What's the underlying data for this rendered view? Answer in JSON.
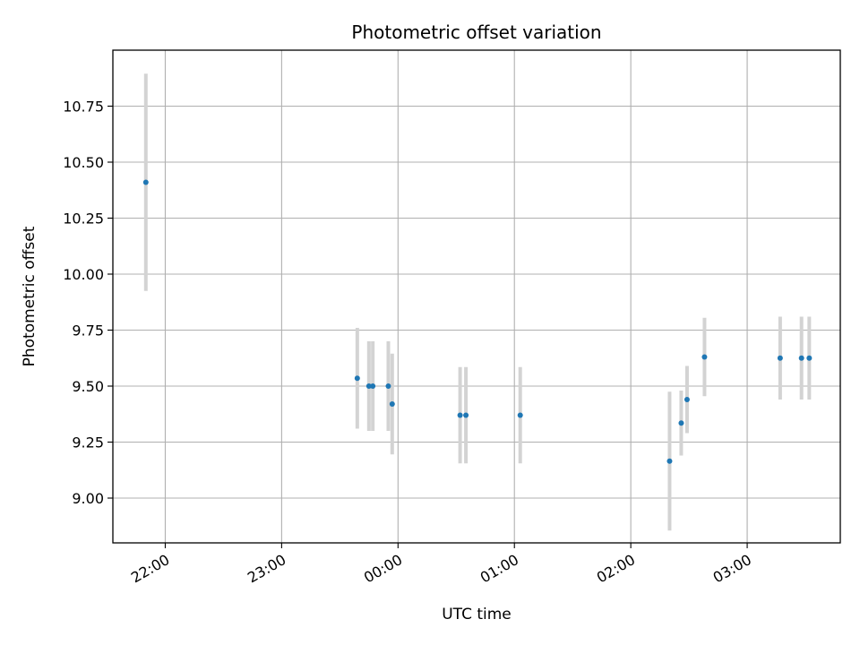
{
  "chart_data": {
    "type": "scatter",
    "title": "Photometric offset variation",
    "xlabel": "UTC time",
    "ylabel": "Photometric offset",
    "xlim": [
      "21:33",
      "03:48"
    ],
    "ylim": [
      8.8,
      11.0
    ],
    "x_ticks": [
      "22:00",
      "23:00",
      "00:00",
      "01:00",
      "02:00",
      "03:00"
    ],
    "y_ticks": [
      9.0,
      9.25,
      9.5,
      9.75,
      10.0,
      10.25,
      10.5,
      10.75
    ],
    "y_tick_labels": [
      "9.00",
      "9.25",
      "9.50",
      "9.75",
      "10.00",
      "10.25",
      "10.50",
      "10.75"
    ],
    "grid": true,
    "colors": {
      "point": "#1f77b4",
      "errorbar": "#d3d3d3",
      "grid": "#b0b0b0"
    },
    "points": [
      {
        "time": "21:50",
        "y": 10.41,
        "yerr": 0.485
      },
      {
        "time": "23:39",
        "y": 9.535,
        "yerr": 0.225
      },
      {
        "time": "23:45",
        "y": 9.5,
        "yerr": 0.2
      },
      {
        "time": "23:47",
        "y": 9.5,
        "yerr": 0.2
      },
      {
        "time": "23:55",
        "y": 9.5,
        "yerr": 0.2
      },
      {
        "time": "23:57",
        "y": 9.42,
        "yerr": 0.225
      },
      {
        "time": "00:32",
        "y": 9.37,
        "yerr": 0.215
      },
      {
        "time": "00:35",
        "y": 9.37,
        "yerr": 0.215
      },
      {
        "time": "01:03",
        "y": 9.37,
        "yerr": 0.215
      },
      {
        "time": "02:20",
        "y": 9.165,
        "yerr": 0.31
      },
      {
        "time": "02:26",
        "y": 9.335,
        "yerr": 0.145
      },
      {
        "time": "02:29",
        "y": 9.44,
        "yerr": 0.15
      },
      {
        "time": "02:38",
        "y": 9.63,
        "yerr": 0.175
      },
      {
        "time": "03:17",
        "y": 9.625,
        "yerr": 0.185
      },
      {
        "time": "03:28",
        "y": 9.625,
        "yerr": 0.185
      },
      {
        "time": "03:32",
        "y": 9.625,
        "yerr": 0.185
      }
    ]
  }
}
